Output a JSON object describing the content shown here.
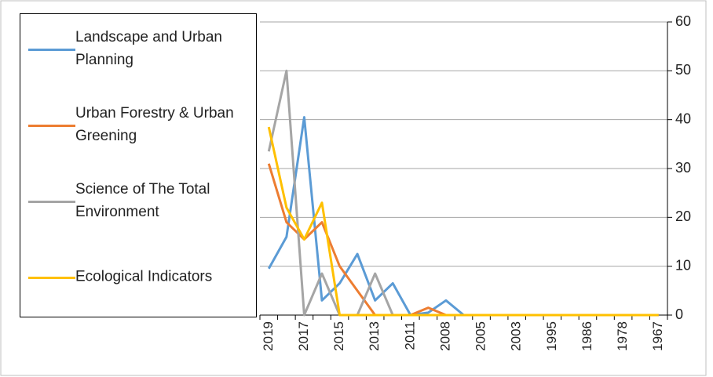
{
  "chart_data": {
    "type": "line",
    "categories": [
      "2019",
      null,
      "2017",
      null,
      "2015",
      null,
      "2013",
      null,
      "2011",
      null,
      "2008",
      null,
      "2005",
      null,
      "2003",
      null,
      "1995",
      null,
      "1986",
      null,
      "1978",
      null,
      "1967"
    ],
    "series": [
      {
        "name": "Landscape and Urban Planning",
        "color": "#5b9bd5",
        "values": [
          9.5,
          16,
          40.5,
          3,
          6.5,
          12.5,
          3,
          6.5,
          0,
          0.5,
          3,
          0,
          0,
          0,
          0,
          0,
          0,
          0,
          0,
          0,
          0,
          0,
          0
        ]
      },
      {
        "name": "Urban Forestry & Urban Greening",
        "color": "#ed7d31",
        "values": [
          31,
          19,
          15.5,
          19,
          10,
          5,
          0,
          0,
          0,
          1.5,
          0,
          0,
          0,
          0,
          0,
          0,
          0,
          0,
          0,
          0,
          0,
          0,
          0
        ]
      },
      {
        "name": "Science of The Total Environment",
        "color": "#a5a5a5",
        "values": [
          33.5,
          50,
          0,
          8.5,
          0,
          0,
          8.5,
          0,
          0,
          0,
          0,
          0,
          0,
          0,
          0,
          0,
          0,
          0,
          0,
          0,
          0,
          0,
          0
        ]
      },
      {
        "name": "Ecological Indicators",
        "color": "#ffc000",
        "values": [
          38.5,
          22,
          15.5,
          23,
          0,
          0,
          0,
          0,
          0,
          0,
          0,
          0,
          0,
          0,
          0,
          0,
          0,
          0,
          0,
          0,
          0,
          0,
          0
        ]
      }
    ],
    "ylim": [
      0,
      60
    ],
    "yticks": [
      0,
      10,
      20,
      30,
      40,
      50,
      60
    ],
    "grid": true,
    "y_axis_side": "right",
    "legend": "left"
  }
}
